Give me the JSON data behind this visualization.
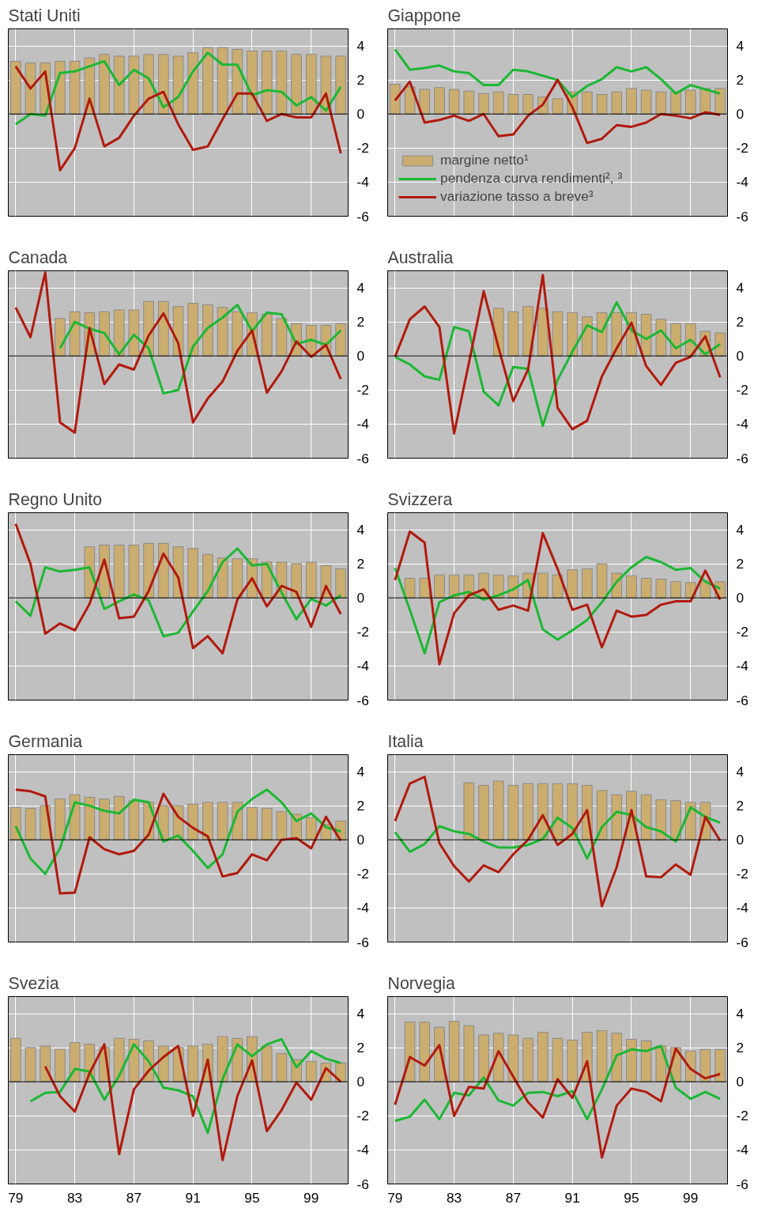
{
  "chart_data": [
    {
      "type": "bar",
      "title": "Stati Uniti",
      "x": [
        1979,
        1980,
        1981,
        1982,
        1983,
        1984,
        1985,
        1986,
        1987,
        1988,
        1989,
        1990,
        1991,
        1992,
        1993,
        1994,
        1995,
        1996,
        1997,
        1998,
        1999,
        2000,
        2001
      ],
      "xlim": [
        1978.5,
        2001.5
      ],
      "ylim": [
        -6,
        5
      ],
      "yticks": [
        -6,
        -4,
        -2,
        0,
        2,
        4
      ],
      "xticks": [
        {
          "value": 1979,
          "label": null
        },
        {
          "value": 1983,
          "label": null
        },
        {
          "value": 1987,
          "label": null
        },
        {
          "value": 1991,
          "label": null
        },
        {
          "value": 1995,
          "label": null
        },
        {
          "value": 1999,
          "label": null
        }
      ],
      "grid": true,
      "tick_labels": "y",
      "ref_lines": [
        {
          "axis": "y",
          "value": 0,
          "color": "#000000"
        }
      ],
      "series": [
        {
          "type": "bar",
          "color": "#cbad6f",
          "values": [
            3.1,
            3.0,
            3.0,
            3.1,
            3.1,
            3.3,
            3.5,
            3.4,
            3.4,
            3.5,
            3.5,
            3.4,
            3.6,
            3.9,
            3.9,
            3.8,
            3.7,
            3.7,
            3.7,
            3.5,
            3.5,
            3.4,
            3.4
          ]
        },
        {
          "type": "line",
          "color": "#1bb833",
          "values": [
            -0.6,
            0,
            -0.1,
            2.4,
            2.5,
            2.8,
            3.1,
            1.7,
            2.6,
            2.1,
            0.4,
            1.0,
            2.5,
            3.6,
            2.9,
            2.9,
            1.1,
            1.4,
            1.3,
            0.5,
            1.0,
            0.2,
            1.6
          ]
        },
        {
          "type": "line",
          "color": "#b11a0e",
          "values": [
            2.8,
            1.5,
            2.5,
            -3.3,
            -2.0,
            0.9,
            -1.9,
            -1.4,
            -0.1,
            0.9,
            1.3,
            -0.6,
            -2.1,
            -1.9,
            -0.3,
            1.2,
            1.2,
            -0.4,
            0,
            -0.2,
            -0.2,
            1.2,
            -2.3
          ]
        }
      ]
    },
    {
      "type": "bar",
      "title": "Giappone",
      "x": [
        1979,
        1980,
        1981,
        1982,
        1983,
        1984,
        1985,
        1986,
        1987,
        1988,
        1989,
        1990,
        1991,
        1992,
        1993,
        1994,
        1995,
        1996,
        1997,
        1998,
        1999,
        2000,
        2001
      ],
      "xlim": [
        1978.5,
        2001.5
      ],
      "ylim": [
        -6,
        5
      ],
      "yticks": [
        -6,
        -4,
        -2,
        0,
        2,
        4
      ],
      "xticks": [
        {
          "value": 1979,
          "label": null
        },
        {
          "value": 1983,
          "label": null
        },
        {
          "value": 1987,
          "label": null
        },
        {
          "value": 1991,
          "label": null
        },
        {
          "value": 1995,
          "label": null
        },
        {
          "value": 1999,
          "label": null
        }
      ],
      "grid": true,
      "tick_labels": "y",
      "ref_lines": [
        {
          "axis": "y",
          "value": 0,
          "color": "#000000"
        }
      ],
      "legend": "bottom left",
      "series": [
        {
          "name": "margine netto¹",
          "color": "#cbad6f",
          "values": [
            1.75,
            1.6,
            1.45,
            1.55,
            1.45,
            1.35,
            1.2,
            1.3,
            1.15,
            1.15,
            1.0,
            0.9,
            1.3,
            1.3,
            1.15,
            1.3,
            1.5,
            1.4,
            1.3,
            1.3,
            1.4,
            1.5,
            1.5
          ]
        },
        {
          "type": "line",
          "name": "pendenza curva rendimenti², ³",
          "color": "#1bb833",
          "values": [
            3.8,
            2.6,
            2.7,
            2.85,
            2.5,
            2.4,
            1.7,
            1.7,
            2.6,
            2.5,
            2.25,
            2.0,
            1.0,
            1.65,
            2.05,
            2.75,
            2.5,
            2.75,
            2.05,
            1.2,
            1.7,
            1.45,
            1.2
          ]
        },
        {
          "type": "line",
          "name": "variazione tasso a breve³",
          "color": "#b11a0e",
          "values": [
            0.8,
            1.9,
            -0.5,
            -0.35,
            -0.1,
            -0.4,
            0,
            -1.3,
            -1.2,
            -0.1,
            0.55,
            2.0,
            0.4,
            -1.7,
            -1.45,
            -0.65,
            -0.75,
            -0.5,
            0,
            -0.1,
            -0.25,
            0.1,
            -0.05
          ]
        }
      ]
    },
    {
      "type": "bar",
      "title": "Canada",
      "x": [
        1979,
        1980,
        1981,
        1982,
        1983,
        1984,
        1985,
        1986,
        1987,
        1988,
        1989,
        1990,
        1991,
        1992,
        1993,
        1994,
        1995,
        1996,
        1997,
        1998,
        1999,
        2000,
        2001
      ],
      "xlim": [
        1978.5,
        2001.5
      ],
      "ylim": [
        -6,
        5
      ],
      "yticks": [
        -6,
        -4,
        -2,
        0,
        2,
        4
      ],
      "xticks": [
        {
          "value": 1979,
          "label": null
        },
        {
          "value": 1983,
          "label": null
        },
        {
          "value": 1987,
          "label": null
        },
        {
          "value": 1991,
          "label": null
        },
        {
          "value": 1995,
          "label": null
        },
        {
          "value": 1999,
          "label": null
        }
      ],
      "grid": true,
      "tick_labels": "y",
      "ref_lines": [
        {
          "axis": "y",
          "value": 0,
          "color": "#000000"
        }
      ],
      "series": [
        {
          "type": "bar",
          "color": "#cbad6f",
          "values": [
            null,
            null,
            null,
            2.2,
            2.6,
            2.55,
            2.6,
            2.7,
            2.7,
            3.2,
            3.2,
            2.9,
            3.1,
            3.0,
            2.85,
            2.6,
            2.55,
            2.45,
            2.2,
            1.9,
            1.8,
            1.8,
            1.9
          ]
        },
        {
          "type": "line",
          "color": "#1bb833",
          "values": [
            null,
            null,
            null,
            0.45,
            2.0,
            1.6,
            1.35,
            0.1,
            1.25,
            0.45,
            -2.2,
            -2.0,
            0.55,
            1.65,
            2.25,
            3.0,
            1.45,
            2.55,
            2.45,
            0.7,
            0.95,
            0.65,
            1.5
          ]
        },
        {
          "type": "line",
          "color": "#b11a0e",
          "values": [
            2.85,
            1.1,
            4.9,
            -3.9,
            -4.5,
            1.65,
            -1.65,
            -0.5,
            -0.8,
            1.2,
            2.5,
            0.75,
            -3.9,
            -2.5,
            -1.5,
            0.3,
            1.5,
            -2.15,
            -0.9,
            0.85,
            -0.05,
            0.65,
            -1.35
          ]
        }
      ]
    },
    {
      "type": "bar",
      "title": "Australia",
      "x": [
        1979,
        1980,
        1981,
        1982,
        1983,
        1984,
        1985,
        1986,
        1987,
        1988,
        1989,
        1990,
        1991,
        1992,
        1993,
        1994,
        1995,
        1996,
        1997,
        1998,
        1999,
        2000,
        2001
      ],
      "xlim": [
        1978.5,
        2001.5
      ],
      "ylim": [
        -6,
        5
      ],
      "yticks": [
        -6,
        -4,
        -2,
        0,
        2,
        4
      ],
      "xticks": [
        {
          "value": 1979,
          "label": null
        },
        {
          "value": 1983,
          "label": null
        },
        {
          "value": 1987,
          "label": null
        },
        {
          "value": 1991,
          "label": null
        },
        {
          "value": 1995,
          "label": null
        },
        {
          "value": 1999,
          "label": null
        }
      ],
      "grid": true,
      "tick_labels": "y",
      "ref_lines": [
        {
          "axis": "y",
          "value": 0,
          "color": "#000000"
        }
      ],
      "series": [
        {
          "type": "bar",
          "color": "#cbad6f",
          "values": [
            null,
            null,
            null,
            null,
            null,
            null,
            null,
            2.8,
            2.6,
            2.9,
            2.8,
            2.6,
            2.55,
            2.3,
            2.55,
            2.55,
            2.55,
            2.45,
            2.15,
            1.9,
            1.9,
            1.45,
            1.35
          ]
        },
        {
          "type": "line",
          "color": "#1bb833",
          "values": [
            -0.05,
            -0.5,
            -1.2,
            -1.4,
            1.7,
            1.45,
            -2.1,
            -2.9,
            -0.65,
            -0.75,
            -4.1,
            -1.4,
            0.25,
            1.8,
            1.4,
            3.15,
            1.5,
            1.0,
            1.5,
            0.45,
            0.95,
            0.1,
            0.7
          ]
        },
        {
          "type": "line",
          "color": "#b11a0e",
          "values": [
            -0.05,
            2.15,
            2.9,
            1.7,
            -4.55,
            -0.4,
            3.8,
            0.5,
            -2.65,
            -0.8,
            4.75,
            -3.05,
            -4.3,
            -3.8,
            -1.2,
            0.45,
            1.95,
            -0.6,
            -1.7,
            -0.4,
            -0.05,
            1.15,
            -1.25
          ]
        }
      ]
    },
    {
      "type": "bar",
      "title": "Regno Unito",
      "x": [
        1979,
        1980,
        1981,
        1982,
        1983,
        1984,
        1985,
        1986,
        1987,
        1988,
        1989,
        1990,
        1991,
        1992,
        1993,
        1994,
        1995,
        1996,
        1997,
        1998,
        1999,
        2000,
        2001
      ],
      "xlim": [
        1978.5,
        2001.5
      ],
      "ylim": [
        -6,
        5
      ],
      "yticks": [
        -6,
        -4,
        -2,
        0,
        2,
        4
      ],
      "xticks": [
        {
          "value": 1979,
          "label": null
        },
        {
          "value": 1983,
          "label": null
        },
        {
          "value": 1987,
          "label": null
        },
        {
          "value": 1991,
          "label": null
        },
        {
          "value": 1995,
          "label": null
        },
        {
          "value": 1999,
          "label": null
        }
      ],
      "grid": true,
      "tick_labels": "y",
      "ref_lines": [
        {
          "axis": "y",
          "value": 0,
          "color": "#000000"
        }
      ],
      "series": [
        {
          "type": "bar",
          "color": "#cbad6f",
          "values": [
            null,
            null,
            null,
            null,
            null,
            3.0,
            3.1,
            3.1,
            3.1,
            3.2,
            3.2,
            3.0,
            2.9,
            2.55,
            2.35,
            2.3,
            2.3,
            2.1,
            2.1,
            2.0,
            2.1,
            1.9,
            1.7
          ]
        },
        {
          "type": "line",
          "color": "#1bb833",
          "values": [
            -0.2,
            -1.05,
            1.8,
            1.55,
            1.65,
            1.8,
            -0.65,
            -0.2,
            0.2,
            -0.15,
            -2.25,
            -2.05,
            -0.8,
            0.4,
            2.1,
            2.9,
            1.9,
            2.0,
            0.3,
            -1.25,
            -0.05,
            -0.45,
            0.15
          ]
        },
        {
          "type": "line",
          "color": "#b11a0e",
          "values": [
            4.35,
            2.0,
            -2.1,
            -1.5,
            -1.9,
            -0.35,
            2.25,
            -1.2,
            -1.1,
            0.4,
            2.6,
            1.2,
            -2.95,
            -2.25,
            -3.25,
            -0.1,
            1.15,
            -0.5,
            0.7,
            0.35,
            -1.7,
            0.7,
            -0.95
          ]
        }
      ]
    },
    {
      "type": "bar",
      "title": "Svizzera",
      "x": [
        1979,
        1980,
        1981,
        1982,
        1983,
        1984,
        1985,
        1986,
        1987,
        1988,
        1989,
        1990,
        1991,
        1992,
        1993,
        1994,
        1995,
        1996,
        1997,
        1998,
        1999,
        2000,
        2001
      ],
      "xlim": [
        1978.5,
        2001.5
      ],
      "ylim": [
        -6,
        5
      ],
      "yticks": [
        -6,
        -4,
        -2,
        0,
        2,
        4
      ],
      "xticks": [
        {
          "value": 1979,
          "label": null
        },
        {
          "value": 1983,
          "label": null
        },
        {
          "value": 1987,
          "label": null
        },
        {
          "value": 1991,
          "label": null
        },
        {
          "value": 1995,
          "label": null
        },
        {
          "value": 1999,
          "label": null
        }
      ],
      "grid": true,
      "tick_labels": "y",
      "ref_lines": [
        {
          "axis": "y",
          "value": 0,
          "color": "#000000"
        }
      ],
      "series": [
        {
          "type": "bar",
          "color": "#cbad6f",
          "values": [
            null,
            1.15,
            1.15,
            1.35,
            1.35,
            1.35,
            1.45,
            1.35,
            1.3,
            1.45,
            1.45,
            1.35,
            1.65,
            1.7,
            2.0,
            1.45,
            1.3,
            1.15,
            1.1,
            0.95,
            0.9,
            1.0,
            0.95
          ]
        },
        {
          "type": "line",
          "color": "#1bb833",
          "values": [
            1.75,
            -0.7,
            -3.25,
            -0.25,
            0.15,
            0.35,
            -0.1,
            0.15,
            0.5,
            1.05,
            -1.85,
            -2.45,
            -1.9,
            -1.3,
            -0.25,
            0.95,
            1.8,
            2.4,
            2.1,
            1.65,
            1.75,
            0.95,
            0.55
          ]
        },
        {
          "type": "line",
          "color": "#b11a0e",
          "values": [
            1.05,
            3.9,
            3.25,
            -3.9,
            -0.9,
            0.15,
            0.5,
            -0.7,
            -0.45,
            -0.75,
            3.8,
            1.7,
            -0.7,
            -0.4,
            -2.9,
            -0.75,
            -1.1,
            -1.0,
            -0.4,
            -0.2,
            -0.2,
            1.6,
            -0.1
          ]
        }
      ]
    },
    {
      "type": "bar",
      "title": "Germania",
      "x": [
        1979,
        1980,
        1981,
        1982,
        1983,
        1984,
        1985,
        1986,
        1987,
        1988,
        1989,
        1990,
        1991,
        1992,
        1993,
        1994,
        1995,
        1996,
        1997,
        1998,
        1999,
        2000,
        2001
      ],
      "xlim": [
        1978.5,
        2001.5
      ],
      "ylim": [
        -6,
        5
      ],
      "yticks": [
        -6,
        -4,
        -2,
        0,
        2,
        4
      ],
      "xticks": [
        {
          "value": 1979,
          "label": null
        },
        {
          "value": 1983,
          "label": null
        },
        {
          "value": 1987,
          "label": null
        },
        {
          "value": 1991,
          "label": null
        },
        {
          "value": 1995,
          "label": null
        },
        {
          "value": 1999,
          "label": null
        }
      ],
      "grid": true,
      "tick_labels": "y",
      "ref_lines": [
        {
          "axis": "y",
          "value": 0,
          "color": "#000000"
        }
      ],
      "series": [
        {
          "type": "bar",
          "color": "#cbad6f",
          "values": [
            1.9,
            1.85,
            2.0,
            2.4,
            2.65,
            2.5,
            2.4,
            2.55,
            2.3,
            2.2,
            2.0,
            2.0,
            2.1,
            2.2,
            2.2,
            2.2,
            1.9,
            1.85,
            1.65,
            1.5,
            1.3,
            0.9,
            1.1
          ]
        },
        {
          "type": "line",
          "color": "#1bb833",
          "values": [
            0.8,
            -1.1,
            -2.0,
            -0.5,
            2.2,
            2.0,
            1.7,
            1.55,
            2.35,
            2.2,
            -0.1,
            0.25,
            -0.65,
            -1.65,
            -0.85,
            1.65,
            2.4,
            2.95,
            2.2,
            1.1,
            1.55,
            0.75,
            0.5
          ]
        },
        {
          "type": "line",
          "color": "#b11a0e",
          "values": [
            2.95,
            2.85,
            2.55,
            -3.15,
            -3.1,
            0.15,
            -0.55,
            -0.85,
            -0.65,
            0.3,
            2.7,
            1.35,
            0.7,
            0.2,
            -2.15,
            -1.95,
            -0.85,
            -1.2,
            0,
            0.1,
            -0.5,
            1.35,
            -0.05
          ]
        }
      ]
    },
    {
      "type": "bar",
      "title": "Italia",
      "x": [
        1979,
        1980,
        1981,
        1982,
        1983,
        1984,
        1985,
        1986,
        1987,
        1988,
        1989,
        1990,
        1991,
        1992,
        1993,
        1994,
        1995,
        1996,
        1997,
        1998,
        1999,
        2000,
        2001
      ],
      "xlim": [
        1978.5,
        2001.5
      ],
      "ylim": [
        -6,
        5
      ],
      "yticks": [
        -6,
        -4,
        -2,
        0,
        2,
        4
      ],
      "xticks": [
        {
          "value": 1979,
          "label": null
        },
        {
          "value": 1983,
          "label": null
        },
        {
          "value": 1987,
          "label": null
        },
        {
          "value": 1991,
          "label": null
        },
        {
          "value": 1995,
          "label": null
        },
        {
          "value": 1999,
          "label": null
        }
      ],
      "grid": true,
      "tick_labels": "y",
      "ref_lines": [
        {
          "axis": "y",
          "value": 0,
          "color": "#000000"
        }
      ],
      "series": [
        {
          "type": "bar",
          "color": "#cbad6f",
          "values": [
            null,
            null,
            null,
            null,
            null,
            3.35,
            3.2,
            3.45,
            3.2,
            3.3,
            3.3,
            3.3,
            3.3,
            3.2,
            2.9,
            2.65,
            2.85,
            2.65,
            2.35,
            2.3,
            2.2,
            2.2,
            null
          ]
        },
        {
          "type": "line",
          "color": "#1bb833",
          "values": [
            0.45,
            -0.7,
            -0.25,
            0.8,
            0.5,
            0.35,
            -0.1,
            -0.45,
            -0.45,
            -0.3,
            0.05,
            1.3,
            0.7,
            -1.1,
            0.75,
            1.65,
            1.45,
            0.75,
            0.5,
            -0.1,
            1.9,
            1.35,
            1.0
          ]
        },
        {
          "type": "line",
          "color": "#b11a0e",
          "values": [
            1.1,
            3.3,
            3.7,
            -0.2,
            -1.55,
            -2.45,
            -1.5,
            -1.9,
            -0.85,
            0,
            1.45,
            -0.3,
            0.35,
            1.75,
            -3.9,
            -1.6,
            1.75,
            -2.15,
            -2.2,
            -1.45,
            -2.05,
            1.35,
            -0.05
          ]
        }
      ]
    },
    {
      "type": "bar",
      "title": "Svezia",
      "x": [
        1979,
        1980,
        1981,
        1982,
        1983,
        1984,
        1985,
        1986,
        1987,
        1988,
        1989,
        1990,
        1991,
        1992,
        1993,
        1994,
        1995,
        1996,
        1997,
        1998,
        1999,
        2000,
        2001
      ],
      "xlim": [
        1978.5,
        2001.5
      ],
      "ylim": [
        -6,
        5
      ],
      "yticks": [
        -6,
        -4,
        -2,
        0,
        2,
        4
      ],
      "xticks": [
        {
          "value": 1979,
          "label": "79"
        },
        {
          "value": 1983,
          "label": "83"
        },
        {
          "value": 1987,
          "label": "87"
        },
        {
          "value": 1991,
          "label": "91"
        },
        {
          "value": 1995,
          "label": "95"
        },
        {
          "value": 1999,
          "label": "99"
        }
      ],
      "grid": true,
      "ref_lines": [
        {
          "axis": "y",
          "value": 0,
          "color": "#000000"
        }
      ],
      "series": [
        {
          "type": "bar",
          "color": "#cbad6f",
          "values": [
            2.55,
            2.0,
            2.1,
            1.9,
            2.3,
            2.2,
            2.0,
            2.55,
            2.5,
            2.4,
            2.1,
            2.0,
            2.1,
            2.2,
            2.65,
            2.55,
            2.65,
            2.1,
            1.65,
            1.3,
            1.2,
            1.1,
            1.1
          ]
        },
        {
          "type": "line",
          "color": "#1bb833",
          "values": [
            null,
            -1.15,
            -0.65,
            -0.6,
            0.75,
            0.6,
            -1.05,
            0.35,
            2.2,
            1.2,
            -0.35,
            -0.5,
            -0.85,
            -3.0,
            0.15,
            2.2,
            1.5,
            2.2,
            2.5,
            0.85,
            1.8,
            1.35,
            1.1
          ]
        },
        {
          "type": "line",
          "color": "#b11a0e",
          "values": [
            null,
            null,
            0.9,
            -0.85,
            -1.75,
            0.5,
            2.2,
            -4.25,
            -0.45,
            0.65,
            1.45,
            2.1,
            -2.0,
            1.3,
            -4.6,
            -0.85,
            1.25,
            -2.9,
            -1.65,
            -0.05,
            -1.05,
            0.8,
            0
          ]
        }
      ]
    },
    {
      "type": "bar",
      "title": "Norvegia",
      "x": [
        1979,
        1980,
        1981,
        1982,
        1983,
        1984,
        1985,
        1986,
        1987,
        1988,
        1989,
        1990,
        1991,
        1992,
        1993,
        1994,
        1995,
        1996,
        1997,
        1998,
        1999,
        2000,
        2001
      ],
      "xlim": [
        1978.5,
        2001.5
      ],
      "ylim": [
        -6,
        5
      ],
      "yticks": [
        -6,
        -4,
        -2,
        0,
        2,
        4
      ],
      "xticks": [
        {
          "value": 1979,
          "label": "79"
        },
        {
          "value": 1983,
          "label": "83"
        },
        {
          "value": 1987,
          "label": "87"
        },
        {
          "value": 1991,
          "label": "91"
        },
        {
          "value": 1995,
          "label": "95"
        },
        {
          "value": 1999,
          "label": "99"
        }
      ],
      "grid": true,
      "ref_lines": [
        {
          "axis": "y",
          "value": 0,
          "color": "#000000"
        }
      ],
      "series": [
        {
          "type": "bar",
          "color": "#cbad6f",
          "values": [
            null,
            3.5,
            3.5,
            3.2,
            3.55,
            3.3,
            2.75,
            2.85,
            2.75,
            2.55,
            2.9,
            2.55,
            2.45,
            2.9,
            3.0,
            2.85,
            2.5,
            2.4,
            2.1,
            2.0,
            1.8,
            1.9,
            1.9
          ]
        },
        {
          "type": "line",
          "color": "#1bb833",
          "values": [
            -2.3,
            -2.05,
            -1.05,
            -2.2,
            -0.65,
            -0.8,
            0.25,
            -1.1,
            -1.4,
            -0.65,
            -0.6,
            -0.85,
            -0.55,
            -2.2,
            -0.45,
            1.55,
            1.9,
            1.8,
            2.1,
            -0.35,
            -1.0,
            -0.6,
            -1.0
          ]
        },
        {
          "type": "line",
          "color": "#b11a0e",
          "values": [
            -1.35,
            1.45,
            0.95,
            2.15,
            -2.0,
            -0.3,
            -0.4,
            1.8,
            0.3,
            -1.2,
            -2.1,
            0.15,
            -0.95,
            1.2,
            -4.45,
            -1.4,
            -0.4,
            -0.6,
            -1.15,
            1.95,
            0.75,
            0.2,
            0.45
          ]
        }
      ]
    }
  ]
}
